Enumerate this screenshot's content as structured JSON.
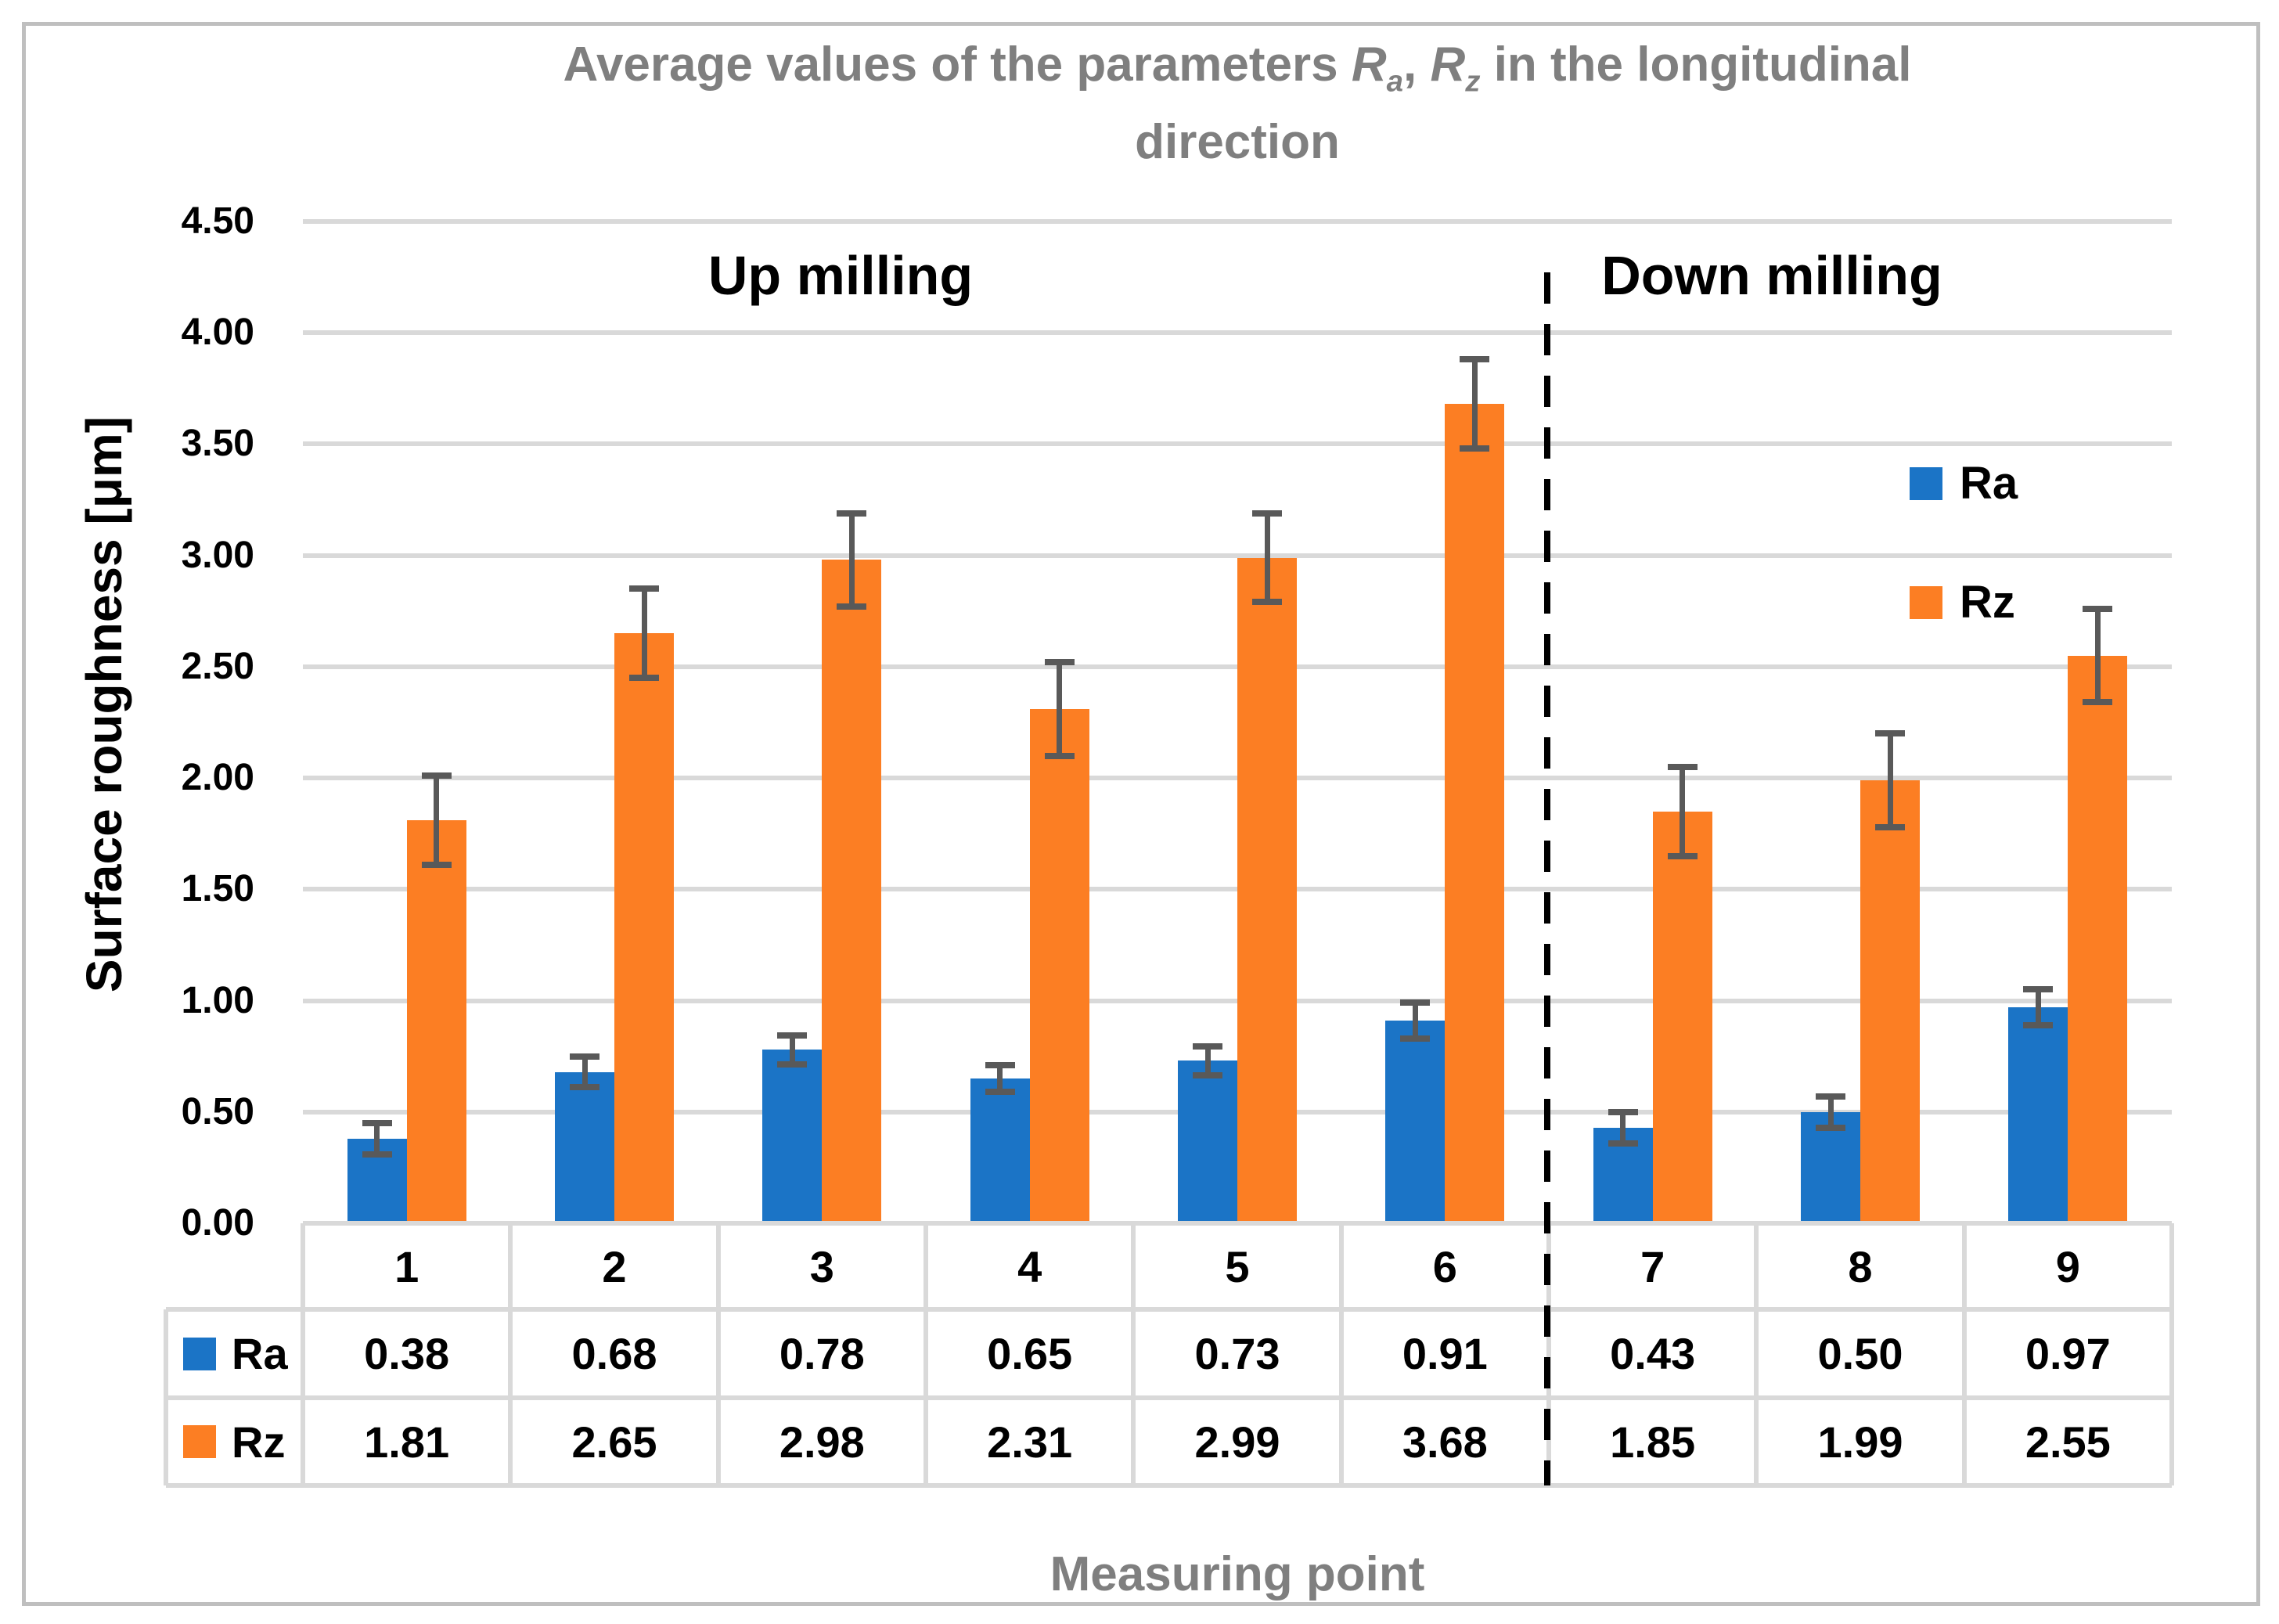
{
  "title": {
    "part1": "Average values of the parameters ",
    "r1": "R",
    "sub1": "a",
    "comma": ", ",
    "r2": "R",
    "sub2": "z",
    "part2": " in the longitudinal",
    "line2": "direction"
  },
  "colors": {
    "ra_blue": "#1B74C6",
    "rz_orange": "#FC7E23",
    "gridline": "#D9D9D9",
    "error_bar": "#595959",
    "title_gray": "#7F7F7F",
    "frame_border": "#BFBFBF",
    "text_black": "#000000"
  },
  "chart_data": {
    "type": "bar",
    "title": "Average values of the parameters Ra, Rz in the longitudinal direction",
    "xlabel": "Measuring point",
    "ylabel": "Surface roughness [μm]",
    "categories": [
      "1",
      "2",
      "3",
      "4",
      "5",
      "6",
      "7",
      "8",
      "9"
    ],
    "series": [
      {
        "name": "Ra",
        "color": "#1B74C6",
        "values": [
          0.38,
          0.68,
          0.78,
          0.65,
          0.73,
          0.91,
          0.43,
          0.5,
          0.97
        ],
        "errors": [
          0.07,
          0.07,
          0.065,
          0.06,
          0.065,
          0.08,
          0.07,
          0.07,
          0.08
        ]
      },
      {
        "name": "Rz",
        "color": "#FC7E23",
        "values": [
          1.81,
          2.65,
          2.98,
          2.31,
          2.99,
          3.68,
          1.85,
          1.99,
          2.55
        ],
        "errors": [
          0.2,
          0.2,
          0.21,
          0.21,
          0.2,
          0.2,
          0.2,
          0.21,
          0.21
        ]
      }
    ],
    "ylim": [
      0,
      4.5
    ],
    "ytick_step": 0.5,
    "grid": true,
    "legend_position": "right",
    "annotations": [
      {
        "label": "Up milling",
        "categories": "1-6"
      },
      {
        "label": "Down milling",
        "categories": "7-9"
      }
    ],
    "separator": "dashed line between measuring points 6 and 7",
    "data_table_shown": true
  }
}
